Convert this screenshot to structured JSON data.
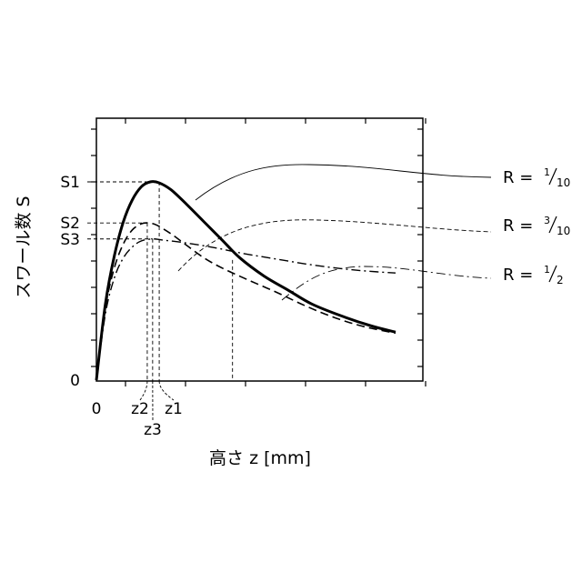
{
  "chart_data": {
    "type": "line",
    "xlabel": "高さ z [mm]",
    "ylabel": "スワール数 S",
    "y_ticks": [
      {
        "label": "0",
        "level": 0
      },
      {
        "label": "S3",
        "level": 0.705
      },
      {
        "label": "S2",
        "level": 0.785
      },
      {
        "label": "S1",
        "level": 0.99
      }
    ],
    "x_ticks": [
      {
        "label": "0",
        "z": 0
      },
      {
        "label": "z2",
        "z": 0.17
      },
      {
        "label": "z3",
        "z": 0.188
      },
      {
        "label": "z1",
        "z": 0.21
      }
    ],
    "series": [
      {
        "name": "R = 1/10",
        "label_main": "R = ",
        "sup": "1",
        "sub": "10",
        "style": "solid-thick",
        "x": [
          0,
          0.03,
          0.06,
          0.09,
          0.12,
          0.15,
          0.18,
          0.21,
          0.25,
          0.3,
          0.36,
          0.42,
          0.48,
          0.56,
          0.64,
          0.72,
          0.82,
          0.92,
          1.0
        ],
        "y": [
          0,
          0.38,
          0.62,
          0.79,
          0.9,
          0.965,
          0.99,
          0.985,
          0.95,
          0.88,
          0.79,
          0.7,
          0.61,
          0.52,
          0.45,
          0.38,
          0.32,
          0.27,
          0.24
        ]
      },
      {
        "name": "R = 3/10",
        "label_main": "R = ",
        "sup": "3",
        "sub": "10",
        "style": "dashed",
        "x": [
          0,
          0.03,
          0.06,
          0.09,
          0.12,
          0.15,
          0.17,
          0.2,
          0.25,
          0.3,
          0.36,
          0.42,
          0.5,
          0.6,
          0.7,
          0.8,
          0.9,
          1.0
        ],
        "y": [
          0,
          0.36,
          0.56,
          0.68,
          0.75,
          0.78,
          0.785,
          0.775,
          0.73,
          0.675,
          0.61,
          0.56,
          0.505,
          0.44,
          0.37,
          0.31,
          0.265,
          0.235
        ]
      },
      {
        "name": "R = 1/2",
        "label_main": "R = ",
        "sup": "1",
        "sub": "2",
        "style": "dash-dot",
        "x": [
          0,
          0.03,
          0.06,
          0.09,
          0.12,
          0.15,
          0.188,
          0.22,
          0.3,
          0.4,
          0.5,
          0.6,
          0.7,
          0.8,
          0.9,
          1.0
        ],
        "y": [
          0,
          0.33,
          0.51,
          0.61,
          0.665,
          0.695,
          0.705,
          0.7,
          0.685,
          0.66,
          0.63,
          0.605,
          0.58,
          0.56,
          0.545,
          0.535
        ]
      }
    ]
  }
}
